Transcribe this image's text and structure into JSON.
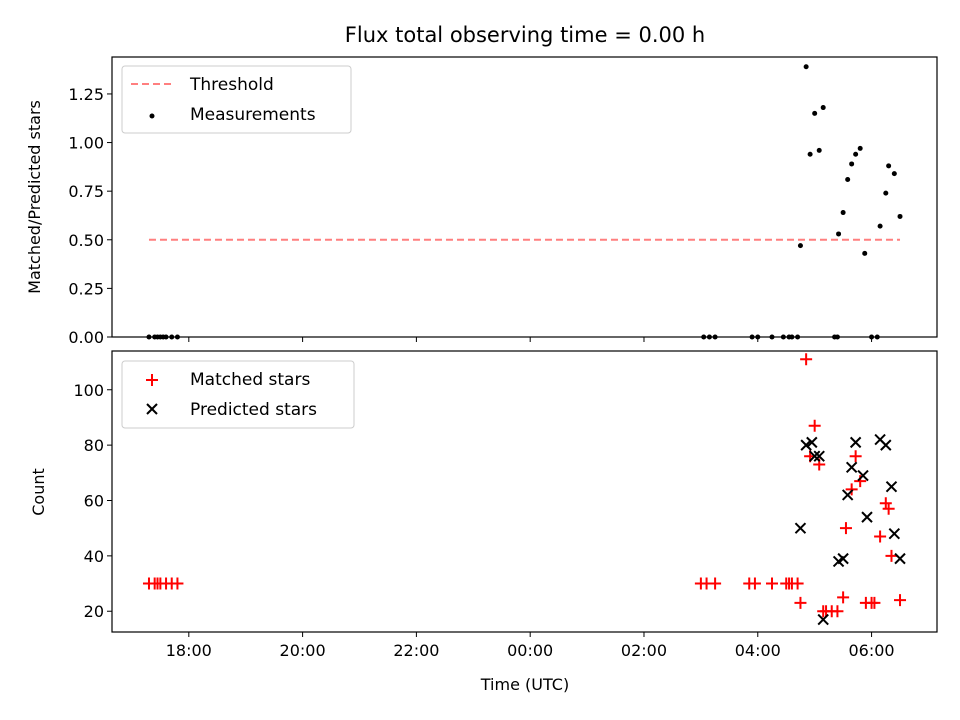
{
  "chart_data": {
    "type": "scatter",
    "title": "Flux total observing time = 0.00 h",
    "xlabel": "Time (UTC)",
    "x_tick_labels": [
      "18:00",
      "20:00",
      "22:00",
      "00:00",
      "02:00",
      "04:00",
      "06:00"
    ],
    "x_tick_hours": [
      18,
      20,
      22,
      24,
      26,
      28,
      30
    ],
    "xlim_hours": [
      16.65,
      31.15
    ],
    "top_panel": {
      "ylabel": "Matched/Predicted stars",
      "ylim": [
        0,
        1.44
      ],
      "y_ticks": [
        0.0,
        0.25,
        0.5,
        0.75,
        1.0,
        1.25
      ],
      "y_tick_labels": [
        "0.00",
        "0.25",
        "0.50",
        "0.75",
        "1.00",
        "1.25"
      ],
      "legend_position": "upper-left",
      "threshold": {
        "name": "Threshold",
        "value": 0.5,
        "x_start_hours": 17.3,
        "x_end_hours": 30.5,
        "color": "#ff7f7f",
        "style": "dashed"
      },
      "measurements": {
        "name": "Measurements",
        "color": "#000000",
        "points": [
          [
            17.3,
            0
          ],
          [
            17.4,
            0
          ],
          [
            17.45,
            0
          ],
          [
            17.5,
            0
          ],
          [
            17.55,
            0
          ],
          [
            17.6,
            0
          ],
          [
            17.7,
            0
          ],
          [
            17.8,
            0
          ],
          [
            27.05,
            0
          ],
          [
            27.15,
            0
          ],
          [
            27.25,
            0
          ],
          [
            27.9,
            0
          ],
          [
            28.0,
            0
          ],
          [
            28.25,
            0
          ],
          [
            28.45,
            0
          ],
          [
            28.55,
            0
          ],
          [
            28.6,
            0
          ],
          [
            28.7,
            0
          ],
          [
            29.35,
            0
          ],
          [
            29.4,
            0
          ],
          [
            30.0,
            0
          ],
          [
            30.1,
            0
          ],
          [
            28.75,
            0.47
          ],
          [
            28.85,
            1.39
          ],
          [
            28.92,
            0.94
          ],
          [
            29.0,
            1.15
          ],
          [
            29.08,
            0.96
          ],
          [
            29.15,
            1.18
          ],
          [
            29.42,
            0.53
          ],
          [
            29.5,
            0.64
          ],
          [
            29.58,
            0.81
          ],
          [
            29.65,
            0.89
          ],
          [
            29.72,
            0.94
          ],
          [
            29.8,
            0.97
          ],
          [
            29.88,
            0.43
          ],
          [
            30.15,
            0.57
          ],
          [
            30.25,
            0.74
          ],
          [
            30.3,
            0.88
          ],
          [
            30.4,
            0.84
          ],
          [
            30.5,
            0.62
          ]
        ]
      }
    },
    "bottom_panel": {
      "ylabel": "Count",
      "ylim": [
        12.5,
        114
      ],
      "y_ticks": [
        20,
        40,
        60,
        80,
        100
      ],
      "y_tick_labels": [
        "20",
        "40",
        "60",
        "80",
        "100"
      ],
      "legend_position": "upper-left",
      "series": [
        {
          "name": "Matched stars",
          "marker": "plus",
          "color": "#ff0000",
          "points": [
            [
              17.3,
              30
            ],
            [
              17.4,
              30
            ],
            [
              17.45,
              30
            ],
            [
              17.5,
              30
            ],
            [
              17.6,
              30
            ],
            [
              17.7,
              30
            ],
            [
              17.8,
              30
            ],
            [
              27.0,
              30
            ],
            [
              27.1,
              30
            ],
            [
              27.25,
              30
            ],
            [
              27.85,
              30
            ],
            [
              27.95,
              30
            ],
            [
              28.25,
              30
            ],
            [
              28.5,
              30
            ],
            [
              28.55,
              30
            ],
            [
              28.6,
              30
            ],
            [
              28.7,
              30
            ],
            [
              28.75,
              23
            ],
            [
              28.85,
              111
            ],
            [
              28.92,
              76
            ],
            [
              29.0,
              87
            ],
            [
              29.08,
              73
            ],
            [
              29.15,
              20
            ],
            [
              29.2,
              20
            ],
            [
              29.3,
              20
            ],
            [
              29.4,
              20
            ],
            [
              29.5,
              25
            ],
            [
              29.55,
              50
            ],
            [
              29.65,
              64
            ],
            [
              29.72,
              76
            ],
            [
              29.8,
              67
            ],
            [
              29.9,
              23
            ],
            [
              30.0,
              23
            ],
            [
              30.05,
              23
            ],
            [
              30.15,
              47
            ],
            [
              30.25,
              59
            ],
            [
              30.3,
              57
            ],
            [
              30.35,
              40
            ],
            [
              30.5,
              24
            ]
          ]
        },
        {
          "name": "Predicted stars",
          "marker": "x",
          "color": "#000000",
          "points": [
            [
              28.75,
              50
            ],
            [
              28.85,
              80
            ],
            [
              28.95,
              81
            ],
            [
              29.0,
              76
            ],
            [
              29.08,
              76
            ],
            [
              29.15,
              17
            ],
            [
              29.42,
              38
            ],
            [
              29.5,
              39
            ],
            [
              29.58,
              62
            ],
            [
              29.65,
              72
            ],
            [
              29.72,
              81
            ],
            [
              29.85,
              69
            ],
            [
              29.92,
              54
            ],
            [
              30.15,
              82
            ],
            [
              30.25,
              80
            ],
            [
              30.35,
              65
            ],
            [
              30.4,
              48
            ],
            [
              30.5,
              39
            ]
          ]
        }
      ]
    }
  }
}
